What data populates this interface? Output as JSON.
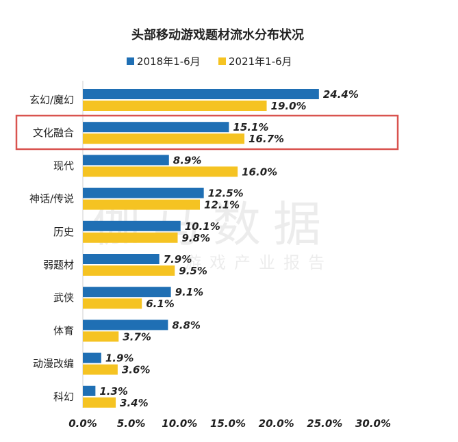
{
  "chart_data": {
    "type": "bar",
    "orientation": "horizontal",
    "title": "头部移动游戏题材流水分布状况",
    "categories": [
      "玄幻/魔幻",
      "文化融合",
      "现代",
      "神话/传说",
      "历史",
      "弱题材",
      "武侠",
      "体育",
      "动漫改编",
      "科幻"
    ],
    "series": [
      {
        "name": "2018年1-6月",
        "color": "#1f6fb4",
        "values": [
          24.4,
          15.1,
          8.9,
          12.5,
          10.1,
          7.9,
          9.1,
          8.8,
          1.9,
          1.3
        ]
      },
      {
        "name": "2021年1-6月",
        "color": "#f5c322",
        "values": [
          19.0,
          16.7,
          16.0,
          12.1,
          9.8,
          9.5,
          6.1,
          3.7,
          3.6,
          3.4
        ]
      }
    ],
    "xlim": [
      0,
      30
    ],
    "xticks": [
      0,
      5,
      10,
      15,
      20,
      25,
      30
    ],
    "xtick_labels": [
      "0.0%",
      "5.0%",
      "10.0%",
      "15.0%",
      "20.0%",
      "25.0%",
      "30.0%"
    ],
    "legend_position": "top",
    "highlighted_category": "文化融合",
    "highlight_color": "#d9534f",
    "grid": false
  },
  "watermark": {
    "line1": "伽马数据",
    "line2": "游戏产业报告"
  }
}
